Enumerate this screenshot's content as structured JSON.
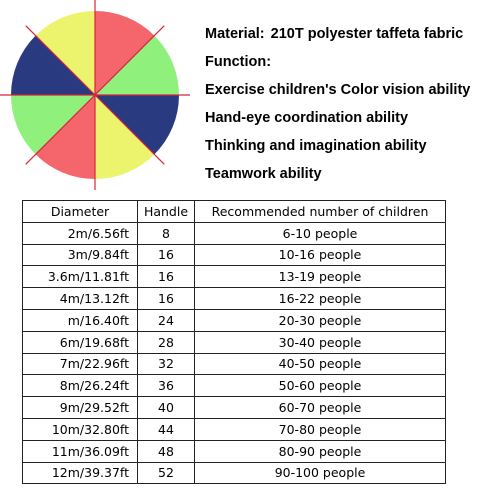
{
  "product": {
    "panel_colors": [
      "#f4656c",
      "#8ff07c",
      "#2a3a80",
      "#ecf36c",
      "#f4656c",
      "#8ff07c",
      "#2a3a80",
      "#ecf36c"
    ],
    "seam_color": "#d8243c"
  },
  "specs": {
    "material_label": "Material:",
    "material_value": "210T polyester taffeta fabric",
    "function_label": "Function:",
    "functions": [
      "Exercise children's Color vision ability",
      "Hand-eye coordination ability",
      "Thinking and imagination ability",
      "Teamwork ability"
    ]
  },
  "table": {
    "headers": [
      "Diameter",
      "Handle",
      "Recommended number of children"
    ],
    "rows": [
      [
        "2m/6.56ft",
        "8",
        "6-10 people"
      ],
      [
        "3m/9.84ft",
        "16",
        "10-16 people"
      ],
      [
        "3.6m/11.81ft",
        "16",
        "13-19 people"
      ],
      [
        "4m/13.12ft",
        "16",
        "16-22 people"
      ],
      [
        "m/16.40ft",
        "24",
        "20-30 people"
      ],
      [
        "6m/19.68ft",
        "28",
        "30-40 people"
      ],
      [
        "7m/22.96ft",
        "32",
        "40-50 people"
      ],
      [
        "8m/26.24ft",
        "36",
        "50-60 people"
      ],
      [
        "9m/29.52ft",
        "40",
        "60-70 people"
      ],
      [
        "10m/32.80ft",
        "44",
        "70-80 people"
      ],
      [
        "11m/36.09ft",
        "48",
        "80-90 people"
      ],
      [
        "12m/39.37ft",
        "52",
        "90-100 people"
      ]
    ]
  }
}
